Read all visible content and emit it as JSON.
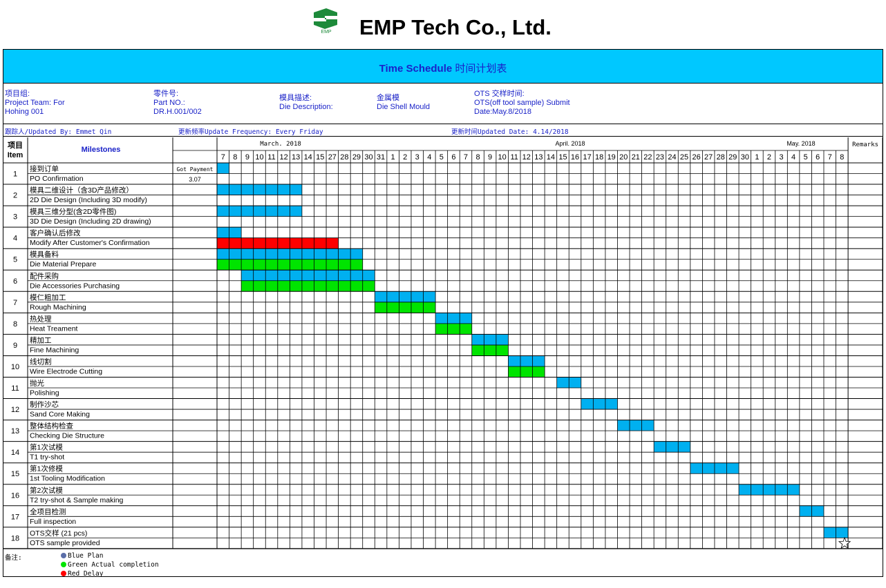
{
  "company": {
    "name": "EMP Tech Co., Ltd.",
    "logo_text": "EMP"
  },
  "schedule_title": {
    "en": "Time Schedule",
    "zh": "时间计划表"
  },
  "info": {
    "project_team_label_zh": "项目组:",
    "project_team_label": "Project Team:  For",
    "project_team_value": "Hohing 001",
    "part_no_label_zh": "零件号:",
    "part_no_label": "Part NO.:",
    "part_no_value": "DR.H.001/002",
    "die_desc_label_zh": "模具描述:",
    "die_desc_label": "Die Description:",
    "die_desc_value_zh": "金属模",
    "die_desc_value": "Die Shell Mould",
    "ots_label_zh": "OTS 交样时间:",
    "ots_label": "OTS(off tool sample)  Submit",
    "ots_date": " Date:May.8/2018",
    "updated_by": "跟踪人/Updated By:  Emmet Qin",
    "update_freq": "更新频率Update Frequency:   Every Friday",
    "updated_date": "更新时间Updated Date: 4.14/2018"
  },
  "table": {
    "item_header_zh": "项目",
    "item_header": "Item",
    "milestones_header": "Milestones",
    "remarks_header": "Remarks",
    "months": [
      "March. 2018",
      "April. 2018",
      "May. 2018"
    ],
    "days": [
      "7",
      "8",
      "9",
      "10",
      "11",
      "12",
      "13",
      "14",
      "15",
      "27",
      "28",
      "29",
      "30",
      "31",
      "1",
      "2",
      "3",
      "4",
      "5",
      "6",
      "7",
      "8",
      "9",
      "10",
      "11",
      "12",
      "13",
      "14",
      "15",
      "16",
      "17",
      "18",
      "19",
      "20",
      "21",
      "22",
      "23",
      "24",
      "25",
      "26",
      "27",
      "28",
      "29",
      "30",
      "1",
      "2",
      "3",
      "4",
      "5",
      "6",
      "7",
      "8"
    ],
    "payment_label": "Got Payment",
    "payment_value": "3.07",
    "rows": [
      {
        "item": "1",
        "zh": "接到订单",
        "en": "PO Confirmation",
        "plan": [
          0,
          1
        ],
        "actual": null,
        "delay": null
      },
      {
        "item": "2",
        "zh": "模具二维设计（含3D产品修改）",
        "en": "2D Die Design (Including 3D modify)",
        "plan": [
          0,
          7
        ],
        "actual": null,
        "delay": null
      },
      {
        "item": "3",
        "zh": "模具三维分型(含2D零件图)",
        "en": "3D Die Design (Including 2D drawing)",
        "plan": [
          0,
          7
        ],
        "actual": null,
        "delay": null
      },
      {
        "item": "4",
        "zh": "客户确认后修改",
        "en": "Modify After Customer's Confirmation",
        "plan": [
          0,
          2
        ],
        "actual": null,
        "delay": [
          0,
          10
        ]
      },
      {
        "item": "5",
        "zh": "模具备料",
        "en": "Die Material Prepare",
        "plan": [
          0,
          12
        ],
        "actual": [
          0,
          12
        ],
        "delay": null
      },
      {
        "item": "6",
        "zh": "配件采购",
        "en": "Die Accessories Purchasing",
        "plan": [
          2,
          13
        ],
        "actual": [
          2,
          13
        ],
        "delay": null
      },
      {
        "item": "7",
        "zh": "模仁粗加工",
        "en": "Rough Machining",
        "plan": [
          13,
          18
        ],
        "actual": [
          13,
          18
        ],
        "delay": null
      },
      {
        "item": "8",
        "zh": "热处理",
        "en": "Heat Treament",
        "plan": [
          18,
          21
        ],
        "actual": [
          18,
          21
        ],
        "delay": null
      },
      {
        "item": "9",
        "zh": "精加工",
        "en": "Fine Machining",
        "plan": [
          21,
          24
        ],
        "actual": [
          21,
          24
        ],
        "delay": null
      },
      {
        "item": "10",
        "zh": "线切割",
        "en": "Wire Electrode Cutting",
        "plan": [
          24,
          27
        ],
        "actual": [
          24,
          27
        ],
        "delay": null
      },
      {
        "item": "11",
        "zh": "抛光",
        "en": "Polishing",
        "plan": [
          28,
          30
        ],
        "actual": null,
        "delay": null
      },
      {
        "item": "12",
        "zh": "制作沙芯",
        "en": "Sand Core Making",
        "plan": [
          30,
          33
        ],
        "actual": null,
        "delay": null
      },
      {
        "item": "13",
        "zh": "整体结构检查",
        "en": "Checking Die Structure",
        "plan": [
          33,
          36
        ],
        "actual": null,
        "delay": null
      },
      {
        "item": "14",
        "zh": "第1次试模",
        "en": "T1 try-shot",
        "plan": [
          36,
          39
        ],
        "actual": null,
        "delay": null
      },
      {
        "item": "15",
        "zh": "第1次修模",
        "en": "1st Tooling Modification",
        "plan": [
          39,
          43
        ],
        "actual": null,
        "delay": null
      },
      {
        "item": "16",
        "zh": "第2次试模",
        "en": "T2 try-shot & Sample making",
        "plan": [
          43,
          48
        ],
        "actual": null,
        "delay": null
      },
      {
        "item": "17",
        "zh": "全项目检测",
        "en": "Full inspection",
        "plan": [
          48,
          50
        ],
        "actual": null,
        "delay": null
      },
      {
        "item": "18",
        "zh": "OTS交样 (21 pcs)",
        "en": "OTS sample provided",
        "plan": [
          50,
          52
        ],
        "actual": null,
        "delay": null
      }
    ]
  },
  "notes": {
    "label": "备注:",
    "blue": "Blue Plan",
    "green": "Green Actual completion",
    "red": "Red Delay"
  },
  "colors": {
    "plan": "#00b0f0",
    "actual": "#00e400",
    "delay": "#ff0000",
    "title_bg": "#00c8ff",
    "text_blue": "#1a22c8"
  },
  "milestone_marker": "star-icon"
}
